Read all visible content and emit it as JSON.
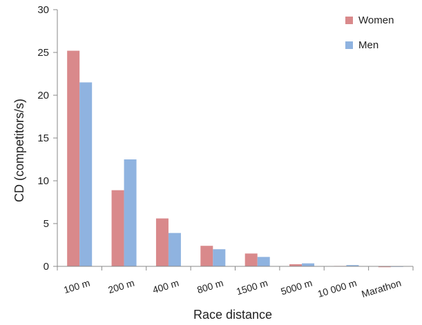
{
  "chart_data": {
    "type": "bar",
    "title": "",
    "xlabel": "Race distance",
    "ylabel": "CD (competitors/s)",
    "ylim": [
      0,
      30
    ],
    "yticks": [
      0,
      5,
      10,
      15,
      20,
      25,
      30
    ],
    "grid": false,
    "legend_position": "top-right",
    "categories": [
      "100 m",
      "200 m",
      "400 m",
      "800 m",
      "1500 m",
      "5000 m",
      "10 000 m",
      "Marathon"
    ],
    "series": [
      {
        "name": "Women",
        "color": "#d9898b",
        "values": [
          25.2,
          8.9,
          5.6,
          2.4,
          1.5,
          0.25,
          0.05,
          -0.1
        ]
      },
      {
        "name": "Men",
        "color": "#8fb3e0",
        "values": [
          21.5,
          12.5,
          3.9,
          2.0,
          1.1,
          0.35,
          0.15,
          0.0
        ]
      }
    ]
  }
}
